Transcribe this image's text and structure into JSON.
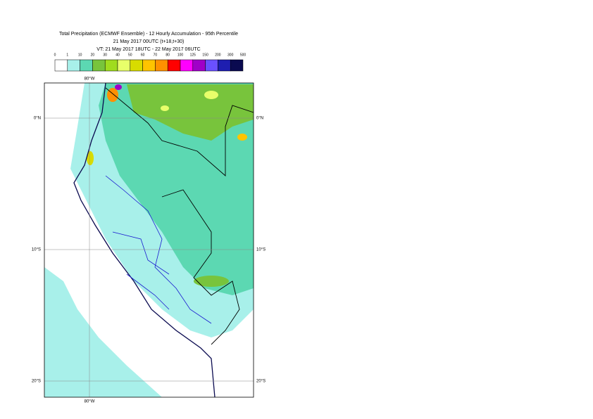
{
  "title_lines": [
    "Total Precipitation (ECMWF Ensemble) - 12 Hourly Accumulation - 95th Percentile",
    "21 May 2017 00UTC (t+18,t+30)",
    "VT: 21 May 2017 18UTC - 22 May 2017 06UTC"
  ],
  "legend": {
    "labels": [
      0,
      1,
      10,
      20,
      30,
      40,
      50,
      60,
      70,
      80,
      100,
      125,
      150,
      200,
      300,
      500
    ],
    "colors": [
      "#ffffff",
      "#a8f0ea",
      "#5cd8b2",
      "#78c43c",
      "#a0dc1e",
      "#e8ff6a",
      "#d8dc00",
      "#ffc400",
      "#ff9000",
      "#ff0000",
      "#ff00ff",
      "#a000c8",
      "#6a50ff",
      "#1e1eb0",
      "#0a0a50"
    ]
  },
  "map": {
    "lon_labels": [
      "80°W"
    ],
    "lat_labels": [
      "0°N",
      "10°S",
      "20°S"
    ]
  }
}
